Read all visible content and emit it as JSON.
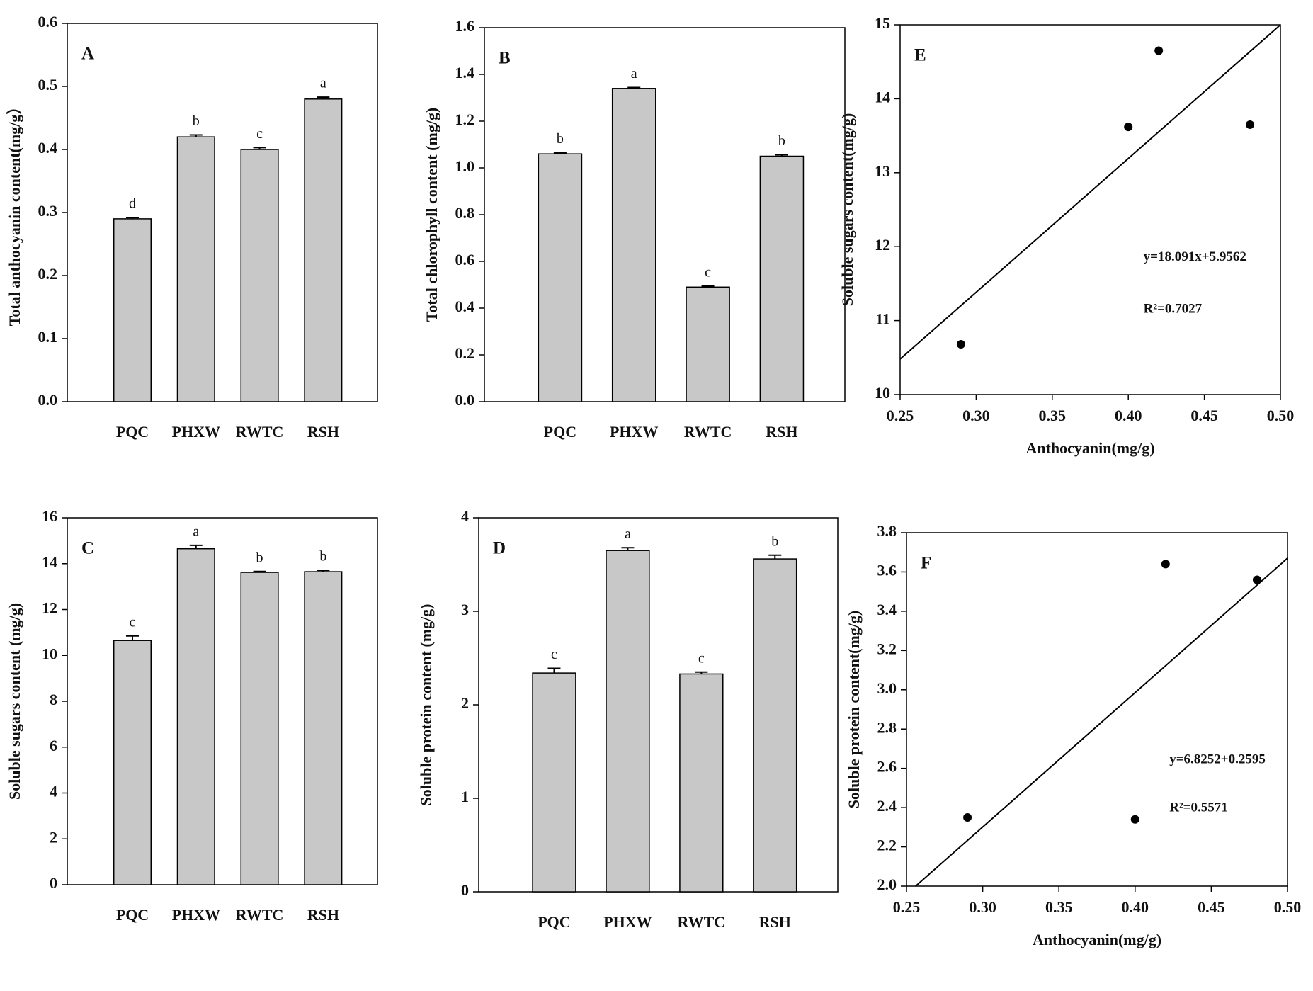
{
  "chart_data": [
    {
      "type": "bar",
      "label": "A",
      "ylabel": "Total anthocyanin content(mg/g）",
      "categories": [
        "PQC",
        "PHXW",
        "RWTC",
        "RSH"
      ],
      "values": [
        0.29,
        0.42,
        0.4,
        0.48
      ],
      "errors": [
        0.002,
        0.003,
        0.003,
        0.003
      ],
      "letters": [
        "d",
        "b",
        "c",
        "a"
      ],
      "color": "#c8c8c8",
      "ylim": [
        0,
        0.6
      ],
      "yticks": [
        {
          "value": 0,
          "label": "0.0"
        },
        0.1,
        0.2,
        0.3,
        0.4,
        0.5,
        0.6
      ]
    },
    {
      "type": "bar",
      "label": "B",
      "ylabel": "Total chlorophyll content (mg/g)",
      "categories": [
        "PQC",
        "PHXW",
        "RWTC",
        "RSH"
      ],
      "values": [
        1.06,
        1.34,
        0.49,
        1.05
      ],
      "errors": [
        0.005,
        0.004,
        0.004,
        0.006
      ],
      "letters": [
        "b",
        "a",
        "c",
        "b"
      ],
      "color": "#c8c8c8",
      "ylim": [
        0,
        1.6
      ],
      "yticks": [
        {
          "value": 0,
          "label": "0.0"
        },
        0.2,
        0.4,
        0.6,
        0.8,
        {
          "value": 1,
          "label": "1.0"
        },
        1.2,
        1.4,
        1.6
      ]
    },
    {
      "type": "bar",
      "label": "C",
      "ylabel": "Soluble sugars content (mg/g)",
      "categories": [
        "PQC",
        "PHXW",
        "RWTC",
        "RSH"
      ],
      "values": [
        10.65,
        14.65,
        13.62,
        13.65
      ],
      "errors": [
        0.2,
        0.15,
        0.04,
        0.06
      ],
      "letters": [
        "c",
        "a",
        "b",
        "b"
      ],
      "color": "#c8c8c8",
      "ylim": [
        0,
        16
      ],
      "yticks": [
        0,
        2,
        4,
        6,
        8,
        10,
        12,
        14,
        16
      ]
    },
    {
      "type": "bar",
      "label": "D",
      "ylabel": "Soluble protein content (mg/g)",
      "categories": [
        "PQC",
        "PHXW",
        "RWTC",
        "RSH"
      ],
      "values": [
        2.34,
        3.65,
        2.33,
        3.56
      ],
      "errors": [
        0.05,
        0.03,
        0.02,
        0.04
      ],
      "letters": [
        "c",
        "a",
        "c",
        "b"
      ],
      "color": "#c8c8c8",
      "ylim": [
        0,
        4
      ],
      "yticks": [
        0,
        1,
        2,
        3,
        4
      ]
    },
    {
      "type": "scatter",
      "label": "E",
      "xlabel": "Anthocyanin(mg/g)",
      "ylabel": "Soluble sugars content(mg/g)",
      "x": [
        0.29,
        0.4,
        0.42,
        0.48
      ],
      "values": [
        10.68,
        13.62,
        14.65,
        13.65
      ],
      "color": "#000000",
      "trendline": {
        "x": [
          0.25,
          0.5
        ],
        "values": [
          10.48,
          15.0
        ]
      },
      "equation": "y=18.091x+5.9562",
      "r_squared": "R²=0.7027",
      "xlim": [
        0.25,
        0.5
      ],
      "xticks": [
        0.25,
        {
          "value": 0.3,
          "label": "0.30"
        },
        0.35,
        {
          "value": 0.4,
          "label": "0.40"
        },
        0.45,
        {
          "value": 0.5,
          "label": "0.50"
        }
      ],
      "ylim": [
        10,
        15
      ],
      "yticks": [
        10,
        11,
        12,
        13,
        14,
        15
      ]
    },
    {
      "type": "scatter",
      "label": "F",
      "xlabel": "Anthocyanin(mg/g)",
      "ylabel": "Soluble protein content(mg/g)",
      "x": [
        0.29,
        0.4,
        0.42,
        0.48
      ],
      "values": [
        2.35,
        2.34,
        3.64,
        3.56
      ],
      "color": "#000000",
      "trendline": {
        "x": [
          0.256,
          0.5
        ],
        "values": [
          2.0,
          3.67
        ]
      },
      "equation": "y=6.8252+0.2595",
      "r_squared": "R²=0.5571",
      "xlim": [
        0.25,
        0.5
      ],
      "xticks": [
        0.25,
        {
          "value": 0.3,
          "label": "0.30"
        },
        0.35,
        {
          "value": 0.4,
          "label": "0.40"
        },
        0.45,
        {
          "value": 0.5,
          "label": "0.50"
        }
      ],
      "ylim": [
        2.0,
        3.8
      ],
      "yticks": [
        {
          "value": 2,
          "label": "2.0"
        },
        2.2,
        2.4,
        2.6,
        2.8,
        {
          "value": 3,
          "label": "3.0"
        },
        3.2,
        3.4,
        3.6,
        3.8
      ]
    }
  ]
}
